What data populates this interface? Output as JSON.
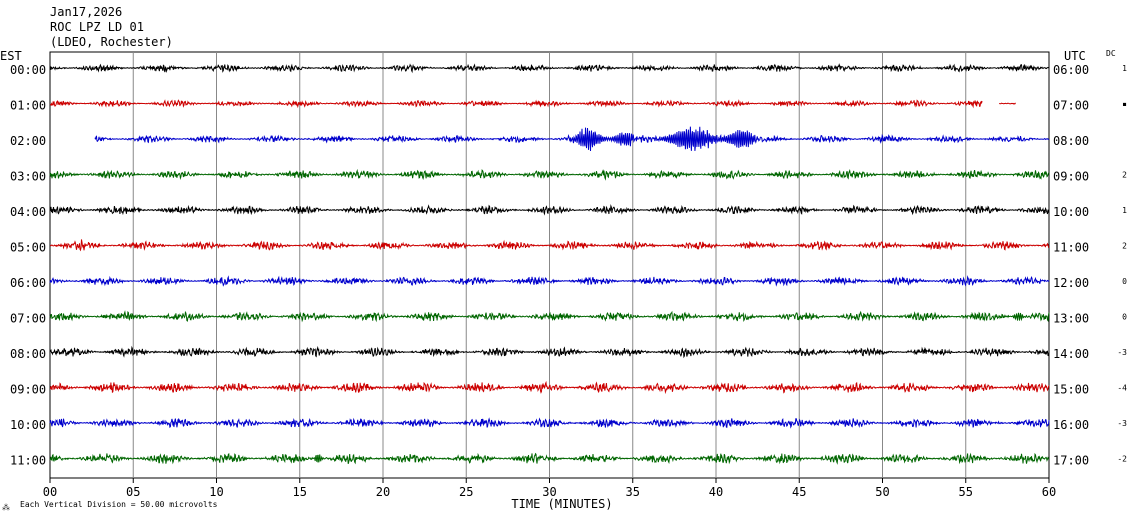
{
  "header": {
    "date": "Jan17,2026",
    "station": "ROC LPZ LD 01",
    "network": "(LDEO, Rochester)"
  },
  "left_axis_title": "EST",
  "right_axis_title": "UTC",
  "dc_title": "DC",
  "footer": {
    "symbol": "⁂",
    "scale_text": "Each Vertical Division =   50.00 microvolts"
  },
  "chart_data": {
    "type": "line",
    "title": "",
    "xlabel": "TIME (MINUTES)",
    "ylabel": "",
    "xlim": [
      0,
      60
    ],
    "x_ticks": [
      0,
      5,
      10,
      15,
      20,
      25,
      30,
      35,
      40,
      45,
      50,
      55,
      60
    ],
    "x_tick_labels": [
      "00",
      "05",
      "10",
      "15",
      "20",
      "25",
      "30",
      "35",
      "40",
      "45",
      "50",
      "55",
      "60"
    ],
    "vertical_grid": true,
    "trace_colors": [
      "#000000",
      "#cc0000",
      "#0000cc",
      "#006600"
    ],
    "rows": [
      {
        "est": "00:00",
        "utc": "06:00",
        "dc": "1",
        "color": "#000000",
        "start_min": 0,
        "end_min": 60,
        "amp": 2.5,
        "gap": null,
        "events": [
          [
            6.8,
            4,
            0.2
          ]
        ]
      },
      {
        "est": "01:00",
        "utc": "07:00",
        "dc": "▪",
        "color": "#cc0000",
        "start_min": 0,
        "end_min": 58,
        "amp": 2.2,
        "gap": [
          56,
          57
        ],
        "events": []
      },
      {
        "est": "02:00",
        "utc": "08:00",
        "dc": "",
        "color": "#0000cc",
        "start_min": 2.7,
        "end_min": 60,
        "amp": 2.5,
        "gap": null,
        "events": [
          [
            32.3,
            10,
            0.8
          ],
          [
            34.5,
            7,
            0.6
          ],
          [
            38.5,
            11,
            1.3
          ],
          [
            41.5,
            9,
            0.8
          ]
        ]
      },
      {
        "est": "03:00",
        "utc": "09:00",
        "dc": "2",
        "color": "#006600",
        "start_min": 0,
        "end_min": 60,
        "amp": 3.0,
        "gap": null,
        "events": []
      },
      {
        "est": "04:00",
        "utc": "10:00",
        "dc": "1",
        "color": "#000000",
        "start_min": 0,
        "end_min": 60,
        "amp": 3.0,
        "gap": null,
        "events": []
      },
      {
        "est": "05:00",
        "utc": "11:00",
        "dc": "2",
        "color": "#cc0000",
        "start_min": 0,
        "end_min": 60,
        "amp": 3.0,
        "gap": null,
        "events": [
          [
            1.8,
            4,
            0.2
          ]
        ]
      },
      {
        "est": "06:00",
        "utc": "12:00",
        "dc": "0",
        "color": "#0000cc",
        "start_min": 0,
        "end_min": 60,
        "amp": 3.0,
        "gap": null,
        "events": []
      },
      {
        "est": "07:00",
        "utc": "13:00",
        "dc": "0",
        "color": "#006600",
        "start_min": 0,
        "end_min": 60,
        "amp": 3.2,
        "gap": null,
        "events": [
          [
            4.8,
            4,
            0.3
          ],
          [
            58.2,
            4,
            0.3
          ]
        ]
      },
      {
        "est": "08:00",
        "utc": "14:00",
        "dc": "-3",
        "color": "#000000",
        "start_min": 0,
        "end_min": 60,
        "amp": 3.2,
        "gap": null,
        "events": []
      },
      {
        "est": "09:00",
        "utc": "15:00",
        "dc": "-4",
        "color": "#cc0000",
        "start_min": 0,
        "end_min": 60,
        "amp": 3.6,
        "gap": null,
        "events": []
      },
      {
        "est": "10:00",
        "utc": "16:00",
        "dc": "-3",
        "color": "#0000cc",
        "start_min": 0,
        "end_min": 60,
        "amp": 3.2,
        "gap": null,
        "events": [
          [
            0.6,
            3,
            0.2
          ]
        ]
      },
      {
        "est": "11:00",
        "utc": "17:00",
        "dc": "-2",
        "color": "#006600",
        "start_min": 0,
        "end_min": 60,
        "amp": 3.6,
        "gap": null,
        "events": [
          [
            16.1,
            5,
            0.2
          ]
        ]
      }
    ]
  }
}
